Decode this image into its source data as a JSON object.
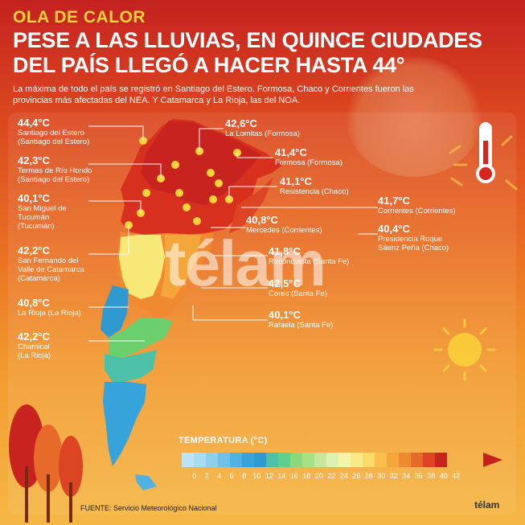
{
  "header": {
    "kicker": "OLA DE CALOR",
    "headline": "PESE A LAS LLUVIAS, EN QUINCE CIUDADES DEL PAÍS LLEGÓ A HACER HASTA 44°",
    "subline": "La máxima de todo el país se registró en Santiago del Estero. Formosa, Chaco y Corrientes fueron las provincias más afectadas del NEA. Y Catamarca y La Rioja, las del NOA."
  },
  "cities_left": [
    {
      "temp": "44,4°C",
      "name": "Santiago del Estero\n(Santiago del Estero)"
    },
    {
      "temp": "42,3°C",
      "name": "Termas de Río Hondo\n(Santiago del Estero)"
    },
    {
      "temp": "40,1°C",
      "name": "San Miguel de\nTucumán\n(Tucumán)"
    },
    {
      "temp": "42,2°C",
      "name": "San Fernando del\nValle de Catamarca\n(Catamarca)"
    },
    {
      "temp": "40,8°C",
      "name": "La Rioja (La Rioja)"
    },
    {
      "temp": "42,2°C",
      "name": "Chamical\n(La Rioja)"
    }
  ],
  "cities_right": [
    {
      "temp": "42,6°C",
      "name": "La Lomitas (Formosa)"
    },
    {
      "temp": "41,4°C",
      "name": "Formosa (Formosa)"
    },
    {
      "temp": "41,1°C",
      "name": "Resistencia (Chaco)"
    },
    {
      "temp": "41,7°C",
      "name": "Corrientes (Corrientes)"
    },
    {
      "temp": "40,8°C",
      "name": "Mercedes (Corrientes)"
    },
    {
      "temp": "40,4°C",
      "name": "Presidencia Roque\nSáenz Peña (Chaco)"
    },
    {
      "temp": "41,8°C",
      "name": "Reconquista (Santa Fe)"
    },
    {
      "temp": "42,5°C",
      "name": "Ceres (Santa Fe)"
    },
    {
      "temp": "40,1°C",
      "name": "Rafaela (Santa Fe)"
    }
  ],
  "legend": {
    "title": "TEMPERATURA (°C)",
    "ticks": [
      "0",
      "2",
      "4",
      "6",
      "8",
      "10",
      "12",
      "14",
      "16",
      "18",
      "20",
      "22",
      "24",
      "26",
      "28",
      "30",
      "32",
      "34",
      "36",
      "38",
      "40",
      "42"
    ],
    "colors": [
      "#bde4f4",
      "#a8dcf2",
      "#8ecfee",
      "#6fc1e9",
      "#4fb2e2",
      "#36a3da",
      "#2f9ad0",
      "#4dc0a8",
      "#5fcf8e",
      "#8bd97a",
      "#a8e085",
      "#c6e89a",
      "#dff0b0",
      "#f4f4a8",
      "#f8eb86",
      "#fadb6a",
      "#f8c04a",
      "#f5a63a",
      "#f08a30",
      "#e86a2a",
      "#dc4424",
      "#c9231f"
    ]
  },
  "watermark": "télam",
  "source": "FUENTE: Servicio Meteorológico Nacional",
  "brand": "télam"
}
